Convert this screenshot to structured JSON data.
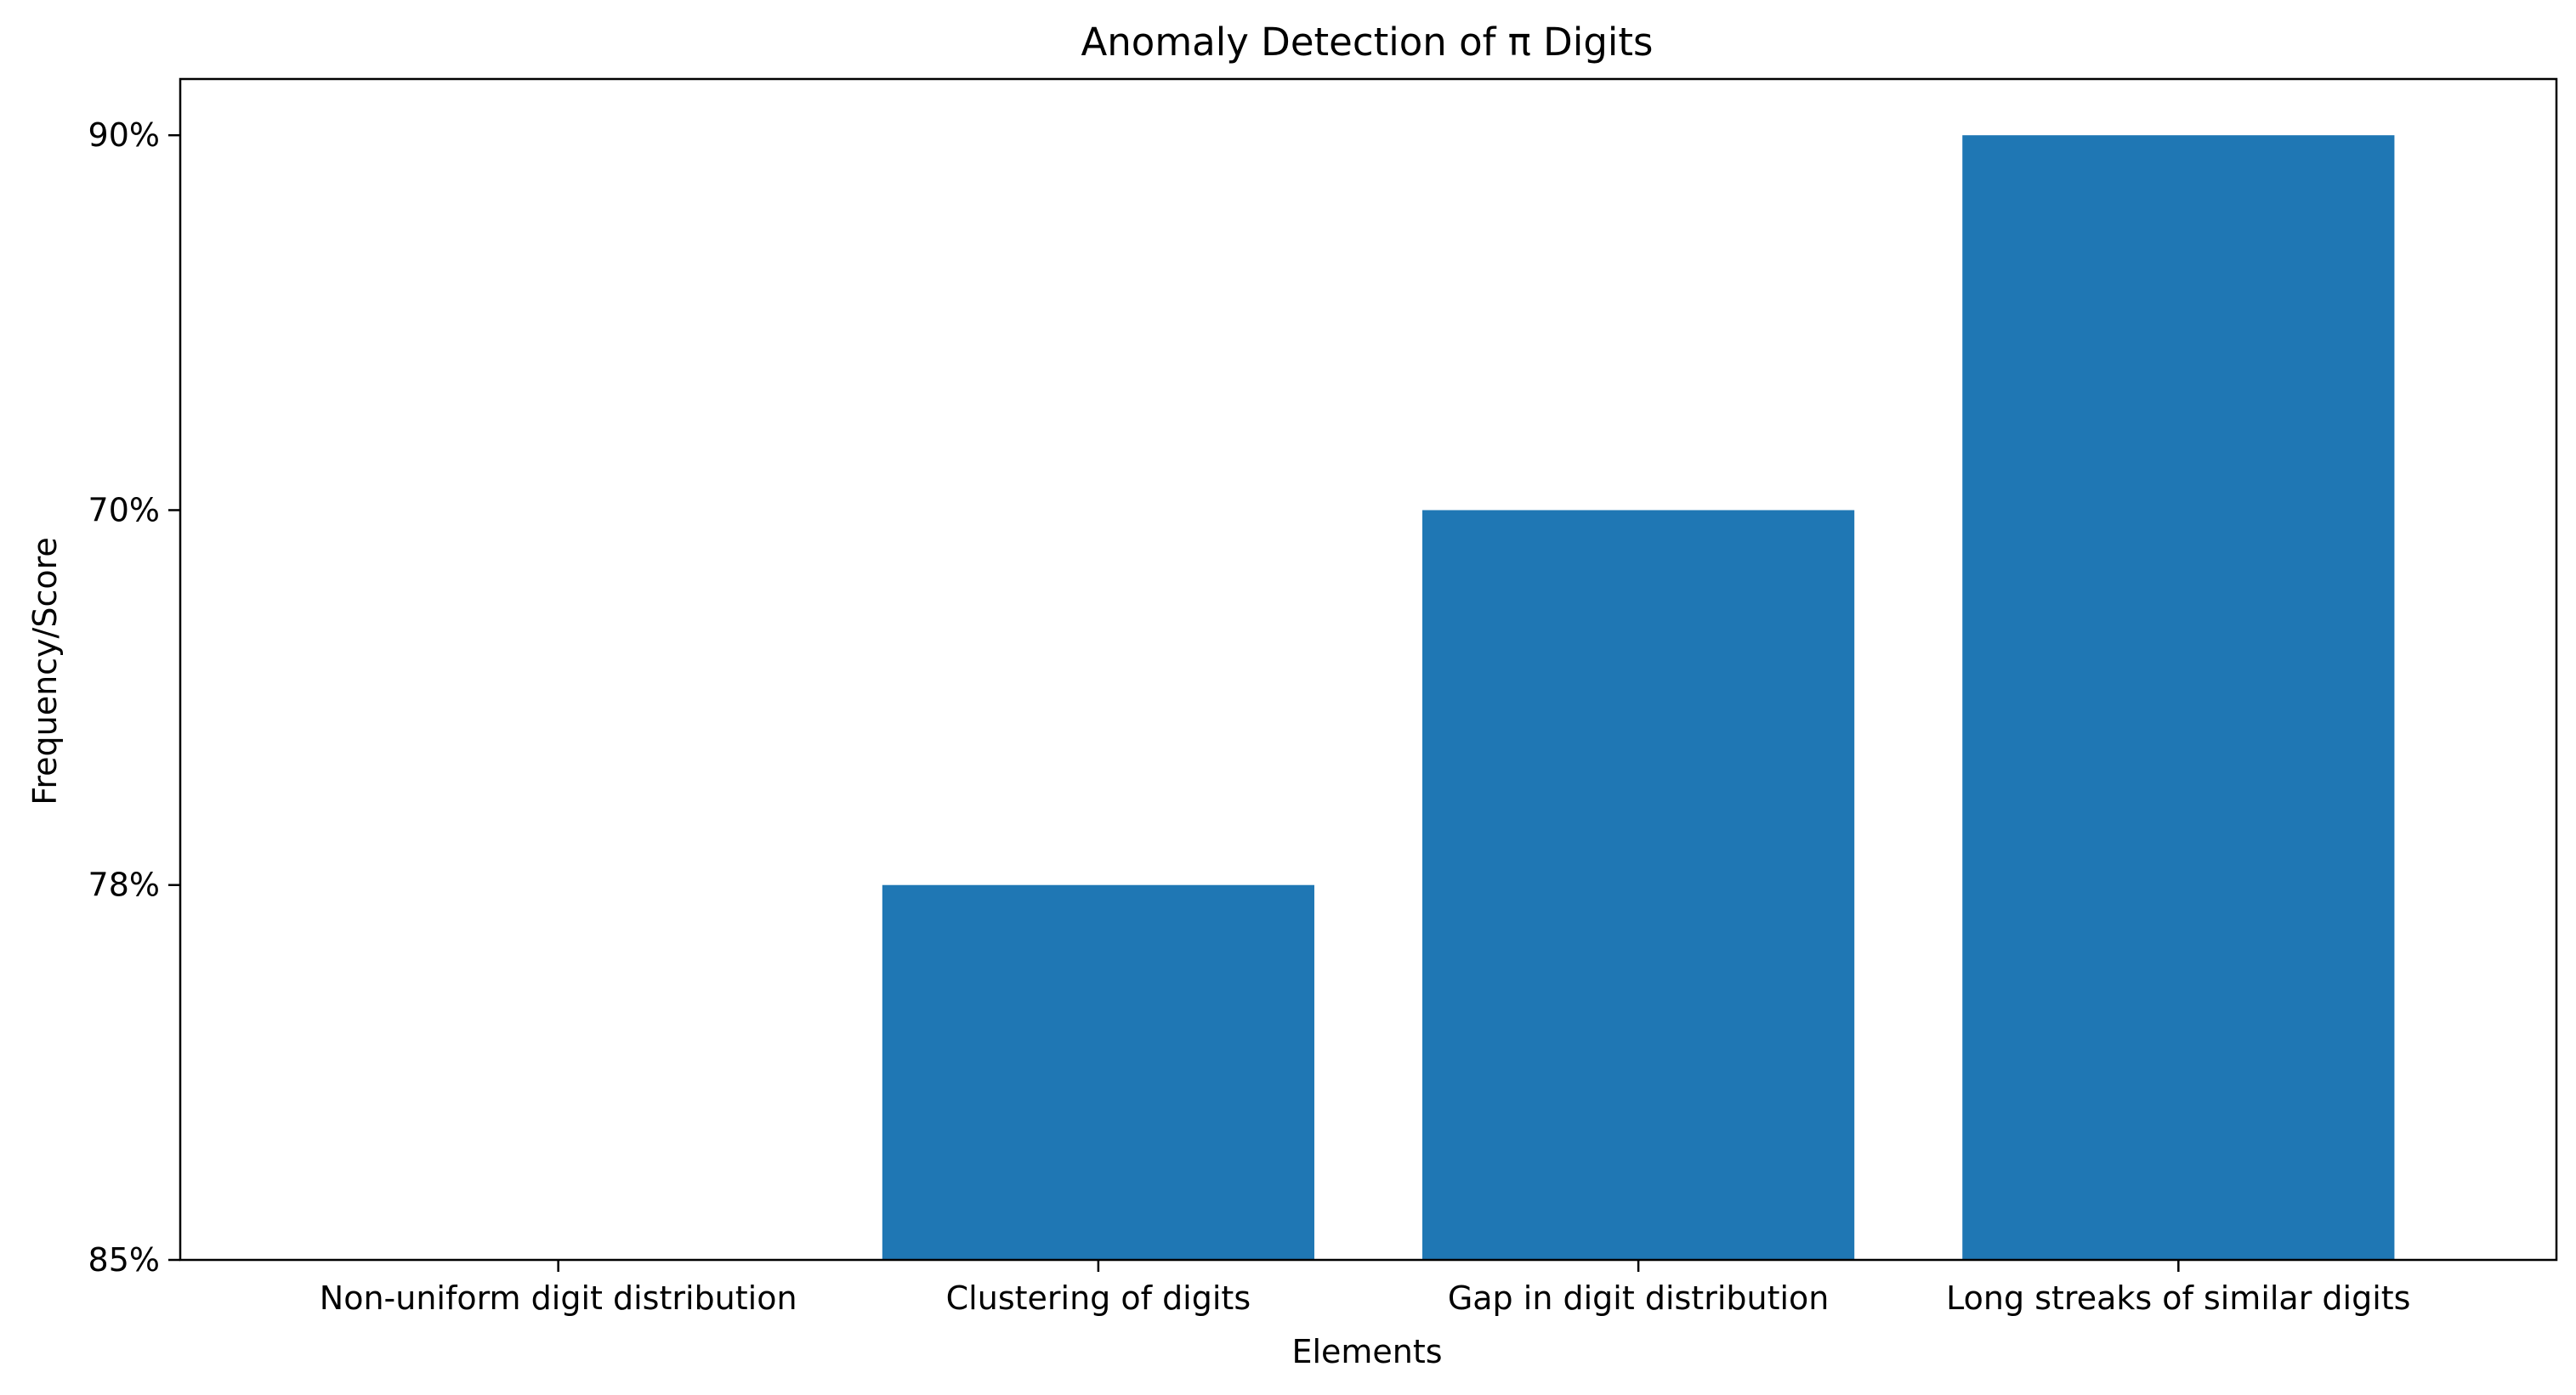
{
  "chart_data": {
    "type": "bar",
    "title": "Anomaly Detection of π Digits",
    "xlabel": "Elements",
    "ylabel": "Frequency/Score",
    "categories": [
      "Non-uniform digit distribution",
      "Clustering of digits",
      "Gap in digit distribution",
      "Long streaks of similar digits"
    ],
    "y_tick_labels": [
      "85%",
      "78%",
      "70%",
      "90%"
    ],
    "values": [
      0,
      1,
      2,
      3
    ],
    "value_labels": [
      "85%",
      "78%",
      "70%",
      "90%"
    ],
    "ylim": [
      0,
      3.15
    ],
    "grid": false,
    "bar_color": "#1f77b4"
  }
}
